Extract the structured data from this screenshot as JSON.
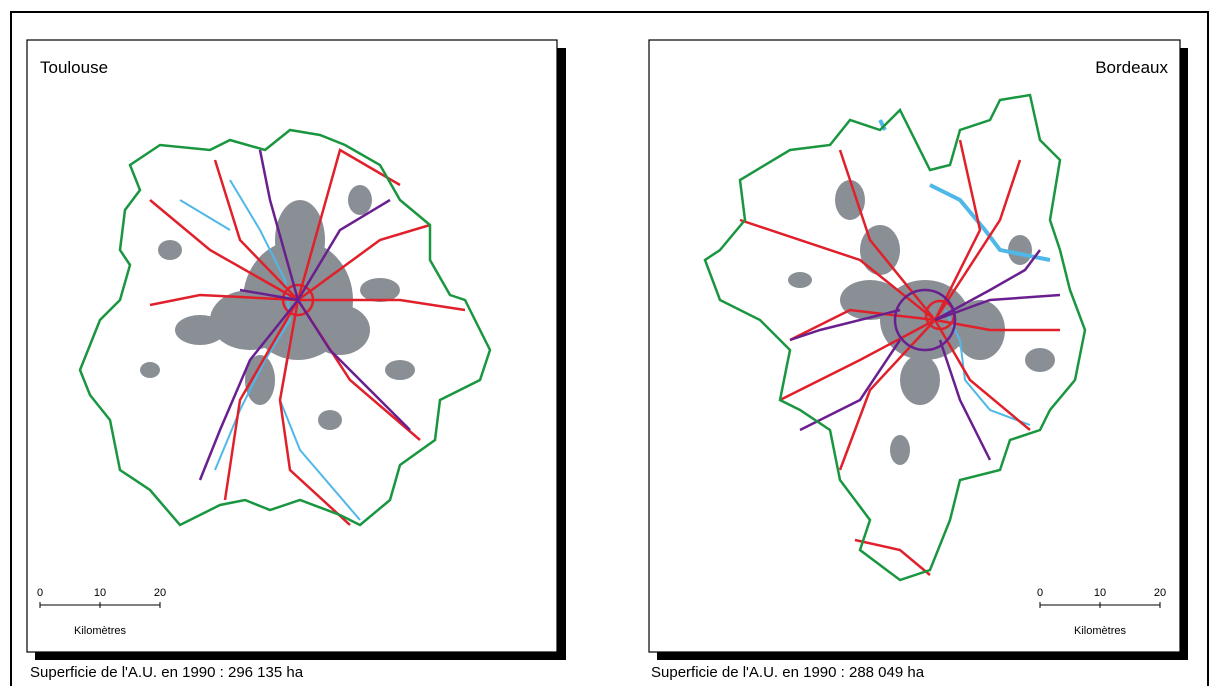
{
  "maps": [
    {
      "title": "Toulouse",
      "scale": {
        "ticks": [
          "0",
          "10",
          "20"
        ],
        "unit": "Kilomètres"
      },
      "caption": "Superficie de l'A.U. en 1990 : 296 135 ha"
    },
    {
      "title": "Bordeaux",
      "scale": {
        "ticks": [
          "0",
          "10",
          "20"
        ],
        "unit": "Kilomètres"
      },
      "caption": "Superficie de l'A.U. en 1990 : 288 049 ha"
    }
  ]
}
